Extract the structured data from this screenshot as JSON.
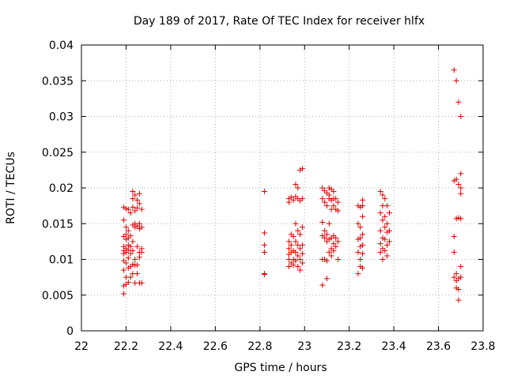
{
  "chart_data": {
    "type": "scatter",
    "title": "Day 189 of 2017, Rate Of TEC Index for receiver hlfx",
    "xlabel": "GPS time / hours",
    "ylabel": "ROTI / TECUs",
    "xlim": [
      22,
      23.8
    ],
    "ylim": [
      0,
      0.04
    ],
    "xticks": [
      22,
      22.2,
      22.4,
      22.6,
      22.8,
      23,
      23.2,
      23.4,
      23.6,
      23.8
    ],
    "xtick_labels": [
      "22",
      "22.2",
      "22.4",
      "22.6",
      "22.8",
      "23",
      "23.2",
      "23.4",
      "23.6",
      "23.8"
    ],
    "yticks": [
      0,
      0.005,
      0.01,
      0.015,
      0.02,
      0.025,
      0.03,
      0.035,
      0.04
    ],
    "ytick_labels": [
      "0",
      "0.005",
      "0.01",
      "0.015",
      "0.02",
      "0.025",
      "0.03",
      "0.035",
      "0.04"
    ],
    "grid": true,
    "marker": "+",
    "marker_color": "#e00000",
    "series": [
      {
        "name": "ROTI",
        "points": [
          [
            22.19,
            0.0173
          ],
          [
            22.19,
            0.0155
          ],
          [
            22.19,
            0.0132
          ],
          [
            22.19,
            0.0118
          ],
          [
            22.19,
            0.0112
          ],
          [
            22.19,
            0.0108
          ],
          [
            22.19,
            0.0098
          ],
          [
            22.19,
            0.0085
          ],
          [
            22.19,
            0.0063
          ],
          [
            22.19,
            0.0052
          ],
          [
            22.2,
            0.0171
          ],
          [
            22.2,
            0.0145
          ],
          [
            22.2,
            0.0135
          ],
          [
            22.2,
            0.0128
          ],
          [
            22.2,
            0.0115
          ],
          [
            22.2,
            0.011
          ],
          [
            22.2,
            0.0095
          ],
          [
            22.2,
            0.0075
          ],
          [
            22.2,
            0.0065
          ],
          [
            22.21,
            0.017
          ],
          [
            22.21,
            0.014
          ],
          [
            22.21,
            0.013
          ],
          [
            22.21,
            0.012
          ],
          [
            22.21,
            0.0113
          ],
          [
            22.21,
            0.0102
          ],
          [
            22.21,
            0.0088
          ],
          [
            22.21,
            0.0068
          ],
          [
            22.22,
            0.0165
          ],
          [
            22.22,
            0.0133
          ],
          [
            22.22,
            0.0118
          ],
          [
            22.22,
            0.0108
          ],
          [
            22.22,
            0.009
          ],
          [
            22.22,
            0.0075
          ],
          [
            22.23,
            0.0195
          ],
          [
            22.23,
            0.0185
          ],
          [
            22.23,
            0.0173
          ],
          [
            22.23,
            0.0148
          ],
          [
            22.23,
            0.0125
          ],
          [
            22.23,
            0.0112
          ],
          [
            22.23,
            0.0093
          ],
          [
            22.23,
            0.008
          ],
          [
            22.24,
            0.019
          ],
          [
            22.24,
            0.0168
          ],
          [
            22.24,
            0.015
          ],
          [
            22.24,
            0.0145
          ],
          [
            22.24,
            0.01
          ],
          [
            22.24,
            0.0092
          ],
          [
            22.24,
            0.0067
          ],
          [
            22.25,
            0.0183
          ],
          [
            22.25,
            0.0172
          ],
          [
            22.25,
            0.0147
          ],
          [
            22.25,
            0.0118
          ],
          [
            22.25,
            0.0092
          ],
          [
            22.25,
            0.008
          ],
          [
            22.26,
            0.0192
          ],
          [
            22.26,
            0.0178
          ],
          [
            22.26,
            0.015
          ],
          [
            22.26,
            0.0143
          ],
          [
            22.26,
            0.011
          ],
          [
            22.26,
            0.0103
          ],
          [
            22.26,
            0.0067
          ],
          [
            22.27,
            0.017
          ],
          [
            22.27,
            0.0145
          ],
          [
            22.27,
            0.0115
          ],
          [
            22.27,
            0.011
          ],
          [
            22.27,
            0.0067
          ],
          [
            22.82,
            0.0195
          ],
          [
            22.82,
            0.0137
          ],
          [
            22.82,
            0.012
          ],
          [
            22.82,
            0.011
          ],
          [
            22.82,
            0.008
          ],
          [
            22.82,
            0.0079
          ],
          [
            22.93,
            0.0185
          ],
          [
            22.93,
            0.018
          ],
          [
            22.93,
            0.0125
          ],
          [
            22.93,
            0.0115
          ],
          [
            22.93,
            0.0107
          ],
          [
            22.93,
            0.01
          ],
          [
            22.93,
            0.009
          ],
          [
            22.94,
            0.0187
          ],
          [
            22.94,
            0.0135
          ],
          [
            22.94,
            0.012
          ],
          [
            22.94,
            0.011
          ],
          [
            22.94,
            0.0095
          ],
          [
            22.95,
            0.0183
          ],
          [
            22.95,
            0.0132
          ],
          [
            22.95,
            0.0112
          ],
          [
            22.95,
            0.01
          ],
          [
            22.95,
            0.0092
          ],
          [
            22.96,
            0.0205
          ],
          [
            22.96,
            0.0188
          ],
          [
            22.96,
            0.015
          ],
          [
            22.96,
            0.0125
          ],
          [
            22.96,
            0.011
          ],
          [
            22.96,
            0.0098
          ],
          [
            22.97,
            0.02
          ],
          [
            22.97,
            0.0185
          ],
          [
            22.97,
            0.014
          ],
          [
            22.97,
            0.012
          ],
          [
            22.97,
            0.0105
          ],
          [
            22.97,
            0.009
          ],
          [
            22.98,
            0.0225
          ],
          [
            22.98,
            0.0182
          ],
          [
            22.98,
            0.0135
          ],
          [
            22.98,
            0.0115
          ],
          [
            22.98,
            0.01
          ],
          [
            22.98,
            0.0085
          ],
          [
            22.99,
            0.0227
          ],
          [
            22.99,
            0.0185
          ],
          [
            22.99,
            0.0145
          ],
          [
            22.99,
            0.012
          ],
          [
            22.99,
            0.0108
          ],
          [
            22.99,
            0.0095
          ],
          [
            23.08,
            0.02
          ],
          [
            23.08,
            0.0185
          ],
          [
            23.08,
            0.0152
          ],
          [
            23.08,
            0.0133
          ],
          [
            23.08,
            0.01
          ],
          [
            23.08,
            0.0064
          ],
          [
            23.09,
            0.0196
          ],
          [
            23.09,
            0.018
          ],
          [
            23.09,
            0.014
          ],
          [
            23.09,
            0.013
          ],
          [
            23.09,
            0.01
          ],
          [
            23.1,
            0.0193
          ],
          [
            23.1,
            0.0175
          ],
          [
            23.1,
            0.0135
          ],
          [
            23.1,
            0.0125
          ],
          [
            23.1,
            0.0098
          ],
          [
            23.1,
            0.0073
          ],
          [
            23.11,
            0.02
          ],
          [
            23.11,
            0.019
          ],
          [
            23.11,
            0.0185
          ],
          [
            23.11,
            0.015
          ],
          [
            23.11,
            0.0128
          ],
          [
            23.11,
            0.011
          ],
          [
            23.12,
            0.0198
          ],
          [
            23.12,
            0.0183
          ],
          [
            23.12,
            0.017
          ],
          [
            23.12,
            0.013
          ],
          [
            23.12,
            0.0115
          ],
          [
            23.12,
            0.0105
          ],
          [
            23.13,
            0.0195
          ],
          [
            23.13,
            0.0185
          ],
          [
            23.13,
            0.0175
          ],
          [
            23.13,
            0.0133
          ],
          [
            23.13,
            0.0122
          ],
          [
            23.13,
            0.0112
          ],
          [
            23.14,
            0.0185
          ],
          [
            23.14,
            0.017
          ],
          [
            23.14,
            0.013
          ],
          [
            23.14,
            0.0118
          ],
          [
            23.15,
            0.018
          ],
          [
            23.15,
            0.0168
          ],
          [
            23.15,
            0.0125
          ],
          [
            23.15,
            0.01
          ],
          [
            23.24,
            0.0175
          ],
          [
            23.24,
            0.015
          ],
          [
            23.24,
            0.0128
          ],
          [
            23.24,
            0.011
          ],
          [
            23.24,
            0.008
          ],
          [
            23.25,
            0.0173
          ],
          [
            23.25,
            0.0145
          ],
          [
            23.25,
            0.013
          ],
          [
            23.25,
            0.0118
          ],
          [
            23.25,
            0.01
          ],
          [
            23.25,
            0.009
          ],
          [
            23.26,
            0.0183
          ],
          [
            23.26,
            0.0175
          ],
          [
            23.26,
            0.016
          ],
          [
            23.26,
            0.0135
          ],
          [
            23.26,
            0.012
          ],
          [
            23.26,
            0.0108
          ],
          [
            23.26,
            0.0088
          ],
          [
            23.34,
            0.0195
          ],
          [
            23.34,
            0.0165
          ],
          [
            23.34,
            0.014
          ],
          [
            23.34,
            0.0122
          ],
          [
            23.34,
            0.011
          ],
          [
            23.35,
            0.019
          ],
          [
            23.35,
            0.0175
          ],
          [
            23.35,
            0.0155
          ],
          [
            23.35,
            0.013
          ],
          [
            23.35,
            0.0115
          ],
          [
            23.35,
            0.01
          ],
          [
            23.36,
            0.0185
          ],
          [
            23.36,
            0.016
          ],
          [
            23.36,
            0.0145
          ],
          [
            23.36,
            0.0128
          ],
          [
            23.36,
            0.0112
          ],
          [
            23.37,
            0.0175
          ],
          [
            23.37,
            0.015
          ],
          [
            23.37,
            0.0138
          ],
          [
            23.37,
            0.012
          ],
          [
            23.37,
            0.0105
          ],
          [
            23.38,
            0.0165
          ],
          [
            23.38,
            0.014
          ],
          [
            23.38,
            0.0125
          ],
          [
            23.67,
            0.0365
          ],
          [
            23.67,
            0.021
          ],
          [
            23.67,
            0.0132
          ],
          [
            23.67,
            0.011
          ],
          [
            23.67,
            0.0075
          ],
          [
            23.68,
            0.035
          ],
          [
            23.68,
            0.0212
          ],
          [
            23.68,
            0.0157
          ],
          [
            23.68,
            0.008
          ],
          [
            23.68,
            0.007
          ],
          [
            23.68,
            0.006
          ],
          [
            23.69,
            0.032
          ],
          [
            23.69,
            0.0205
          ],
          [
            23.69,
            0.0158
          ],
          [
            23.69,
            0.0073
          ],
          [
            23.69,
            0.0058
          ],
          [
            23.69,
            0.0043
          ],
          [
            23.7,
            0.03
          ],
          [
            23.7,
            0.022
          ],
          [
            23.7,
            0.02
          ],
          [
            23.7,
            0.0192
          ],
          [
            23.7,
            0.0157
          ],
          [
            23.7,
            0.009
          ],
          [
            23.7,
            0.0075
          ]
        ]
      }
    ]
  }
}
